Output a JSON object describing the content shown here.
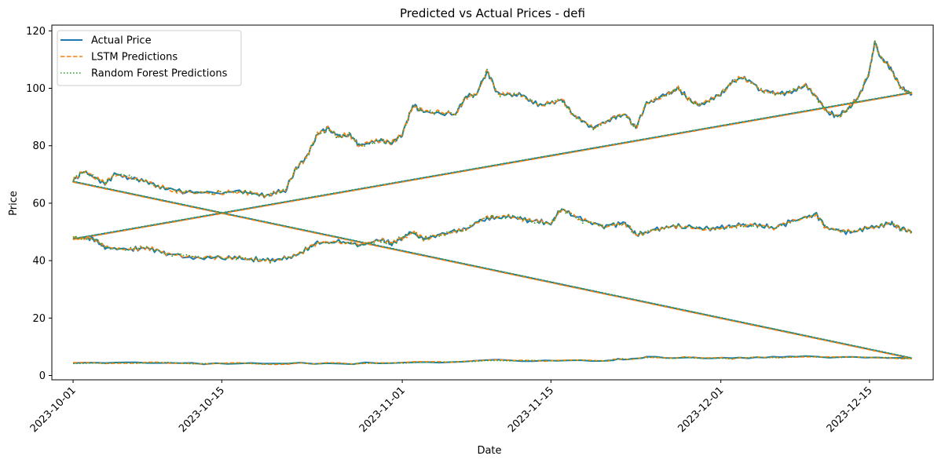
{
  "chart_data": {
    "type": "line",
    "title": "Predicted vs Actual Prices - defi",
    "xlabel": "Date",
    "ylabel": "Price",
    "xlim": [
      "2023-09-29",
      "2023-12-21"
    ],
    "ylim": [
      -1.5,
      122
    ],
    "x_ticks": [
      "2023-10-01",
      "2023-10-15",
      "2023-11-01",
      "2023-11-15",
      "2023-12-01",
      "2023-12-15"
    ],
    "y_ticks": [
      0,
      20,
      40,
      60,
      80,
      100,
      120
    ],
    "grid": false,
    "legend_position": "top-left",
    "series": [
      {
        "name": "Actual Price",
        "color": "#1f77b4",
        "style": "solid"
      },
      {
        "name": "LSTM Predictions",
        "color": "#ff7f0e",
        "style": "dashed"
      },
      {
        "name": "Random Forest Predictions",
        "color": "#2ca02c",
        "style": "dotted"
      }
    ],
    "price_tracks": [
      {
        "id": "track-high",
        "points": [
          [
            "2023-10-01",
            68
          ],
          [
            "2023-10-02",
            71
          ],
          [
            "2023-10-04",
            67
          ],
          [
            "2023-10-05",
            70
          ],
          [
            "2023-10-07",
            68.5
          ],
          [
            "2023-10-09",
            66
          ],
          [
            "2023-10-11",
            64
          ],
          [
            "2023-10-14",
            63.5
          ],
          [
            "2023-10-17",
            64
          ],
          [
            "2023-10-19",
            62.5
          ],
          [
            "2023-10-21",
            64.5
          ],
          [
            "2023-10-22",
            72
          ],
          [
            "2023-10-23",
            76
          ],
          [
            "2023-10-24",
            84
          ],
          [
            "2023-10-25",
            86
          ],
          [
            "2023-10-26",
            83
          ],
          [
            "2023-10-27",
            84
          ],
          [
            "2023-10-28",
            80
          ],
          [
            "2023-10-30",
            82
          ],
          [
            "2023-10-31",
            81
          ],
          [
            "2023-11-01",
            84
          ],
          [
            "2023-11-02",
            94
          ],
          [
            "2023-11-03",
            92
          ],
          [
            "2023-11-06",
            91
          ],
          [
            "2023-11-07",
            97
          ],
          [
            "2023-11-08",
            98
          ],
          [
            "2023-11-09",
            106
          ],
          [
            "2023-11-10",
            98
          ],
          [
            "2023-11-12",
            98
          ],
          [
            "2023-11-14",
            94
          ],
          [
            "2023-11-16",
            96
          ],
          [
            "2023-11-17",
            91
          ],
          [
            "2023-11-19",
            86
          ],
          [
            "2023-11-21",
            90
          ],
          [
            "2023-11-22",
            91
          ],
          [
            "2023-11-23",
            86
          ],
          [
            "2023-11-24",
            95
          ],
          [
            "2023-11-26",
            98
          ],
          [
            "2023-11-27",
            100
          ],
          [
            "2023-11-28",
            96
          ],
          [
            "2023-11-29",
            94
          ],
          [
            "2023-12-01",
            98
          ],
          [
            "2023-12-02",
            102
          ],
          [
            "2023-12-03",
            104
          ],
          [
            "2023-12-05",
            99
          ],
          [
            "2023-12-07",
            98
          ],
          [
            "2023-12-09",
            101
          ],
          [
            "2023-12-10",
            97
          ],
          [
            "2023-12-11",
            92
          ],
          [
            "2023-12-12",
            90
          ],
          [
            "2023-12-13",
            93
          ],
          [
            "2023-12-14",
            97
          ],
          [
            "2023-12-15",
            106
          ],
          [
            "2023-12-15T12",
            116
          ],
          [
            "2023-12-16",
            111
          ],
          [
            "2023-12-17",
            107
          ],
          [
            "2023-12-18",
            100
          ],
          [
            "2023-12-19",
            98
          ]
        ]
      },
      {
        "id": "track-mid",
        "points": [
          [
            "2023-10-01",
            48
          ],
          [
            "2023-10-03",
            47.5
          ],
          [
            "2023-10-04",
            44.5
          ],
          [
            "2023-10-06",
            44
          ],
          [
            "2023-10-08",
            44.5
          ],
          [
            "2023-10-10",
            42
          ],
          [
            "2023-10-13",
            41
          ],
          [
            "2023-10-16",
            41
          ],
          [
            "2023-10-18",
            40.5
          ],
          [
            "2023-10-20",
            40
          ],
          [
            "2023-10-22",
            42
          ],
          [
            "2023-10-24",
            46
          ],
          [
            "2023-10-26",
            46.5
          ],
          [
            "2023-10-28",
            45.5
          ],
          [
            "2023-10-30",
            47
          ],
          [
            "2023-10-31",
            46
          ],
          [
            "2023-11-01",
            48
          ],
          [
            "2023-11-02",
            50
          ],
          [
            "2023-11-03",
            47.5
          ],
          [
            "2023-11-05",
            49.5
          ],
          [
            "2023-11-07",
            51
          ],
          [
            "2023-11-09",
            55
          ],
          [
            "2023-11-11",
            55.5
          ],
          [
            "2023-11-13",
            54
          ],
          [
            "2023-11-15",
            53
          ],
          [
            "2023-11-16",
            58
          ],
          [
            "2023-11-18",
            54
          ],
          [
            "2023-11-20",
            52
          ],
          [
            "2023-11-22",
            53
          ],
          [
            "2023-11-23",
            49
          ],
          [
            "2023-11-25",
            51
          ],
          [
            "2023-11-27",
            52
          ],
          [
            "2023-11-30",
            51
          ],
          [
            "2023-12-02",
            52
          ],
          [
            "2023-12-04",
            52.5
          ],
          [
            "2023-12-06",
            51.5
          ],
          [
            "2023-12-08",
            54
          ],
          [
            "2023-12-10",
            56
          ],
          [
            "2023-12-11",
            51
          ],
          [
            "2023-12-13",
            50
          ],
          [
            "2023-12-15",
            51.5
          ],
          [
            "2023-12-17",
            53
          ],
          [
            "2023-12-18",
            51
          ],
          [
            "2023-12-19",
            50
          ]
        ]
      },
      {
        "id": "track-low",
        "points": [
          [
            "2023-10-01",
            4.5
          ],
          [
            "2023-10-10",
            4.3
          ],
          [
            "2023-10-20",
            4.1
          ],
          [
            "2023-10-31",
            4.3
          ],
          [
            "2023-11-10",
            5.2
          ],
          [
            "2023-11-20",
            5.1
          ],
          [
            "2023-11-24",
            6.3
          ],
          [
            "2023-12-02",
            6.0
          ],
          [
            "2023-12-09",
            6.6
          ],
          [
            "2023-12-19",
            6.0
          ]
        ]
      }
    ],
    "wrap_segments": [
      {
        "id": "segment-rising",
        "from": [
          "2023-10-01",
          47.5
        ],
        "to": [
          "2023-12-19",
          98.5
        ]
      },
      {
        "id": "segment-falling",
        "from": [
          "2023-10-01",
          67.5
        ],
        "to": [
          "2023-12-19",
          6
        ]
      }
    ]
  }
}
